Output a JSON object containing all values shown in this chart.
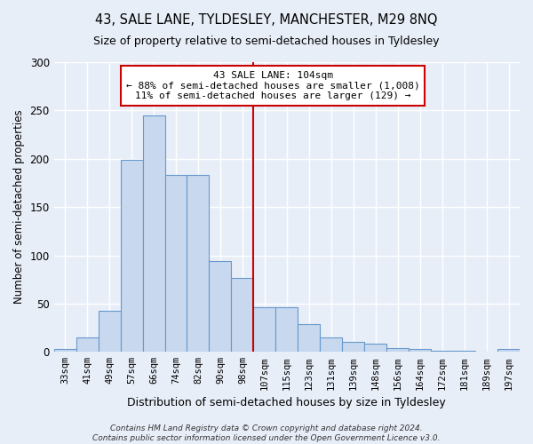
{
  "title": "43, SALE LANE, TYLDESLEY, MANCHESTER, M29 8NQ",
  "subtitle": "Size of property relative to semi-detached houses in Tyldesley",
  "xlabel": "Distribution of semi-detached houses by size in Tyldesley",
  "ylabel": "Number of semi-detached properties",
  "bar_labels": [
    "33sqm",
    "41sqm",
    "49sqm",
    "57sqm",
    "66sqm",
    "74sqm",
    "82sqm",
    "90sqm",
    "98sqm",
    "107sqm",
    "115sqm",
    "123sqm",
    "131sqm",
    "139sqm",
    "148sqm",
    "156sqm",
    "164sqm",
    "172sqm",
    "181sqm",
    "189sqm",
    "197sqm"
  ],
  "bar_values": [
    3,
    15,
    43,
    199,
    245,
    183,
    183,
    94,
    77,
    46,
    46,
    29,
    15,
    10,
    9,
    4,
    3,
    1,
    1,
    0,
    3
  ],
  "bar_color": "#c8d8ee",
  "bar_edge_color": "#6699cc",
  "vline_x": 9.0,
  "vline_color": "#cc0000",
  "annotation_title": "43 SALE LANE: 104sqm",
  "annotation_line1": "← 88% of semi-detached houses are smaller (1,008)",
  "annotation_line2": "11% of semi-detached houses are larger (129) →",
  "annotation_box_color": "#cc0000",
  "ylim": [
    0,
    300
  ],
  "yticks": [
    0,
    50,
    100,
    150,
    200,
    250,
    300
  ],
  "bg_color": "#e8eef8",
  "plot_bg_color": "#e8eef8",
  "grid_color": "#ffffff",
  "title_fontsize": 10.5,
  "subtitle_fontsize": 9,
  "footer_line1": "Contains HM Land Registry data © Crown copyright and database right 2024.",
  "footer_line2": "Contains public sector information licensed under the Open Government Licence v3.0."
}
